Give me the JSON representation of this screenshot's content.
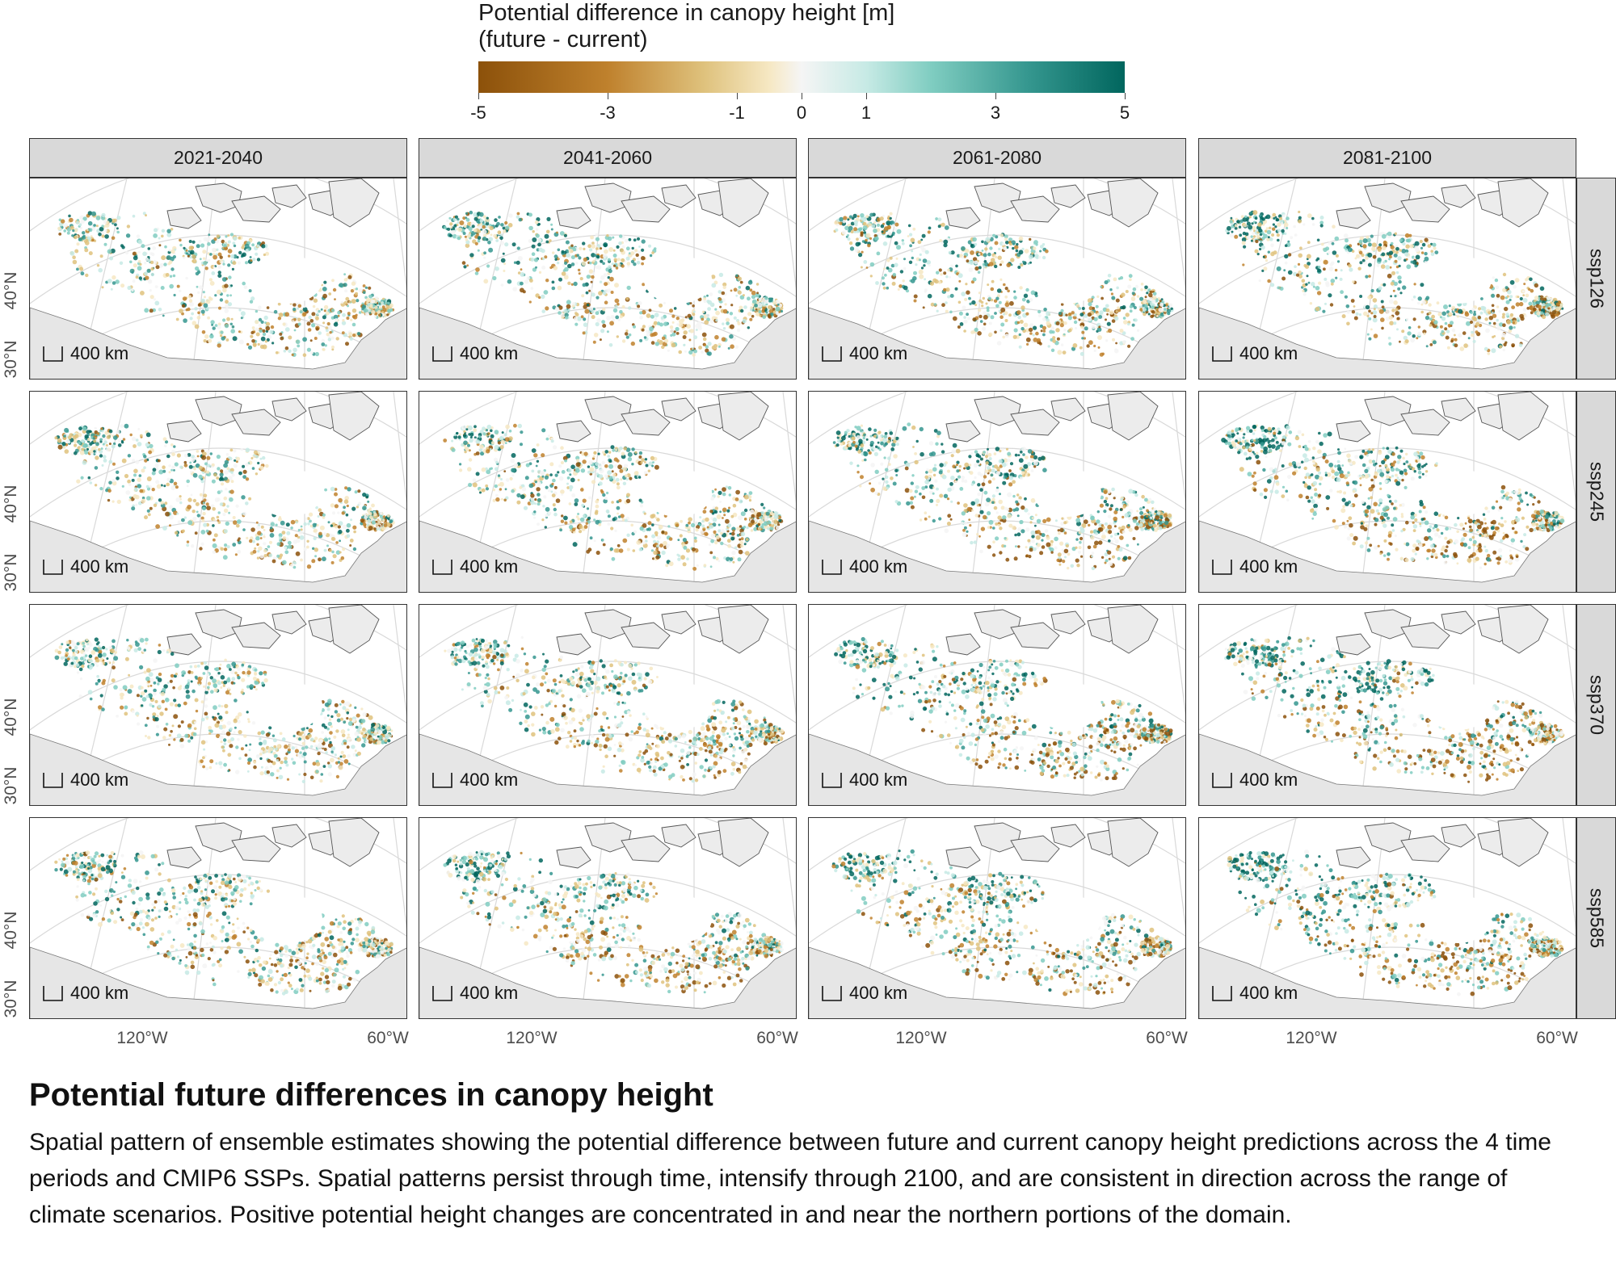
{
  "legend": {
    "title_line1": "Potential difference in canopy height [m]",
    "title_line2": "(future - current)",
    "ticks": [
      "-5",
      "-3",
      "-1",
      "0",
      "1",
      "3",
      "5"
    ],
    "range": [
      -5,
      5
    ],
    "colors": [
      "#8c510a",
      "#bf812d",
      "#dfc27d",
      "#f6e8c3",
      "#f5f5f5",
      "#c7eae5",
      "#80cdc1",
      "#35978f",
      "#01665e"
    ]
  },
  "columns": [
    "2021-2040",
    "2041-2060",
    "2061-2080",
    "2081-2100"
  ],
  "rows": [
    "ssp126",
    "ssp245",
    "ssp370",
    "ssp585"
  ],
  "scale_bar_label": "400 km",
  "lat_labels": [
    "40°N",
    "30°N"
  ],
  "lon_labels": [
    "120°W",
    "60°W"
  ],
  "colors": {
    "land": "#e6e6e6",
    "graticule": "#d9d9d9",
    "strip": "#d9d9d9"
  },
  "figure": {
    "title": "Potential future differences in canopy height",
    "caption": "Spatial pattern of ensemble estimates showing the potential difference between future and current canopy height predictions across the 4 time periods and CMIP6 SSPs. Spatial patterns persist through time, intensify through 2100, and are consistent in direction across the range of climate scenarios. Positive potential height changes are concentrated in and near the northern portions of the domain."
  }
}
